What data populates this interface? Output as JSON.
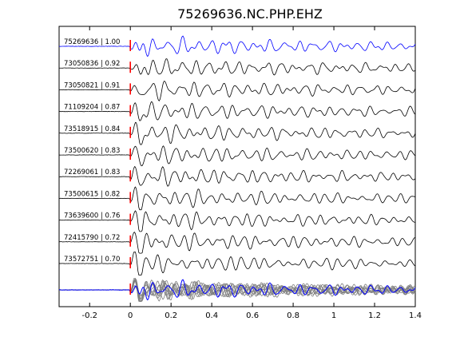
{
  "chart_data": {
    "type": "line",
    "title": "75269636.NC.PHP.EHZ",
    "xlabel": "",
    "ylabel": "",
    "xlim": [
      -0.35,
      1.4
    ],
    "xticks": [
      -0.2,
      0,
      0.2,
      0.4,
      0.6,
      0.8,
      1,
      1.2,
      1.4
    ],
    "xtick_labels": [
      "-0.2",
      "0",
      "0.2",
      "0.4",
      "0.6",
      "0.8",
      "1",
      "1.2",
      "1.4"
    ],
    "pick_time": 0,
    "grid": false,
    "legend": "none",
    "colors": {
      "reference": "#0000ff",
      "trace": "#000000",
      "stack": "#7f7f7f",
      "pick": "#ff0000",
      "axes": "#000000"
    },
    "series": [
      {
        "id": "75269636",
        "cc": "1.00",
        "label": "75269636 | 1.00",
        "reference": true
      },
      {
        "id": "73050836",
        "cc": "0.92",
        "label": "73050836 | 0.92"
      },
      {
        "id": "73050821",
        "cc": "0.91",
        "label": "73050821 | 0.91"
      },
      {
        "id": "71109204",
        "cc": "0.87",
        "label": "71109204 | 0.87"
      },
      {
        "id": "73518915",
        "cc": "0.84",
        "label": "73518915 | 0.84"
      },
      {
        "id": "73500620",
        "cc": "0.83",
        "label": "73500620 | 0.83"
      },
      {
        "id": "72269061",
        "cc": "0.83",
        "label": "72269061 | 0.83"
      },
      {
        "id": "73500615",
        "cc": "0.82",
        "label": "73500615 | 0.82"
      },
      {
        "id": "73639600",
        "cc": "0.76",
        "label": "73639600 | 0.76"
      },
      {
        "id": "72415790",
        "cc": "0.72",
        "label": "72415790 | 0.72"
      },
      {
        "id": "73572751",
        "cc": "0.70",
        "label": "73572751 | 0.70"
      }
    ]
  }
}
